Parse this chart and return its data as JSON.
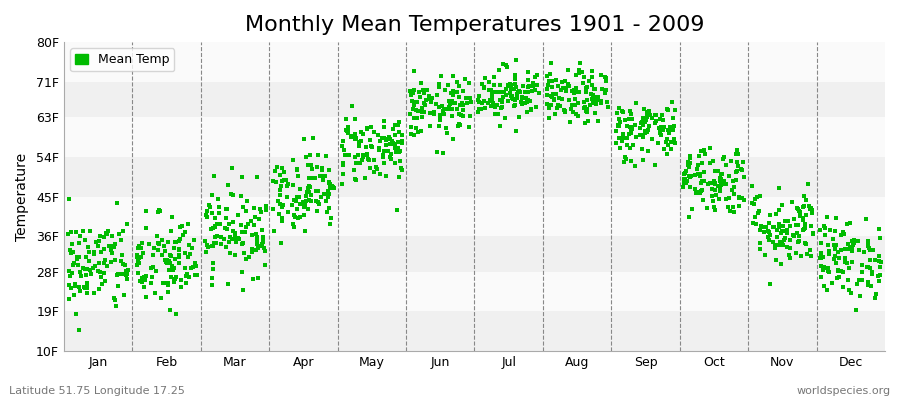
{
  "title": "Monthly Mean Temperatures 1901 - 2009",
  "ylabel": "Temperature",
  "xlabel_bottom_left": "Latitude 51.75 Longitude 17.25",
  "xlabel_bottom_right": "worldspecies.org",
  "legend_label": "Mean Temp",
  "ytick_labels": [
    "10F",
    "19F",
    "28F",
    "36F",
    "45F",
    "54F",
    "63F",
    "71F",
    "80F"
  ],
  "ytick_values": [
    10,
    19,
    28,
    36,
    45,
    54,
    63,
    71,
    80
  ],
  "ylim": [
    10,
    80
  ],
  "month_labels": [
    "Jan",
    "Feb",
    "Mar",
    "Apr",
    "May",
    "Jun",
    "Jul",
    "Aug",
    "Sep",
    "Oct",
    "Nov",
    "Dec"
  ],
  "dot_color": "#00bb00",
  "bg_color": "#ffffff",
  "plot_bg_color": "#ffffff",
  "hband_colors": [
    "#f0f0f0",
    "#fafafa"
  ],
  "title_fontsize": 16,
  "axis_label_fontsize": 10,
  "tick_fontsize": 9,
  "dot_size": 8,
  "n_years": 109,
  "monthly_mean_temps_f": [
    29.5,
    30.0,
    37.5,
    46.5,
    56.0,
    65.0,
    68.5,
    67.5,
    60.0,
    49.0,
    38.0,
    31.0
  ],
  "monthly_std_temps_f": [
    5.5,
    5.5,
    5.0,
    4.5,
    4.0,
    3.5,
    3.0,
    3.0,
    3.5,
    4.0,
    4.5,
    4.5
  ]
}
